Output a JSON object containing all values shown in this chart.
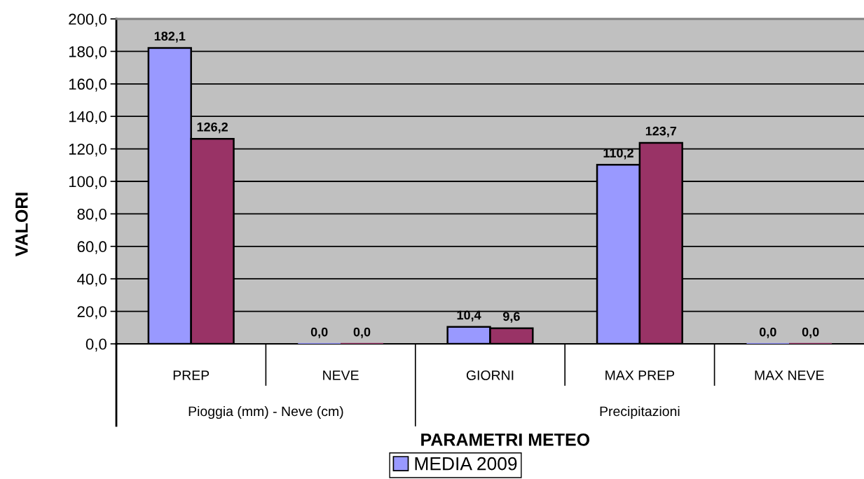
{
  "chart_data": {
    "type": "bar",
    "xlabel": "PARAMETRI METEO",
    "ylabel": "VALORI",
    "categories": [
      "PREP",
      "NEVE",
      "GIORNI",
      "MAX PREP",
      "MAX NEVE"
    ],
    "series": [
      {
        "name": "MEDIA 2009",
        "color": "#9999ff",
        "values": [
          182.1,
          0.0,
          10.4,
          110.2,
          0.0
        ],
        "value_labels": [
          "182,1",
          "0,0",
          "10,4",
          "110,2",
          "0,0"
        ]
      },
      {
        "color": "#993366",
        "values": [
          126.2,
          0.0,
          9.6,
          123.7,
          0.0
        ],
        "value_labels": [
          "126,2",
          "0,0",
          "9,6",
          "123,7",
          "0,0"
        ]
      }
    ],
    "ylim": [
      0,
      200
    ],
    "yticks": [
      {
        "value": 0,
        "label": "0,0"
      },
      {
        "value": 20,
        "label": "20,0"
      },
      {
        "value": 40,
        "label": "40,0"
      },
      {
        "value": 60,
        "label": "60,0"
      },
      {
        "value": 80,
        "label": "80,0"
      },
      {
        "value": 100,
        "label": "100,0"
      },
      {
        "value": 120,
        "label": "120,0"
      },
      {
        "value": 140,
        "label": "140,0"
      },
      {
        "value": 160,
        "label": "160,0"
      },
      {
        "value": 180,
        "label": "180,0"
      },
      {
        "value": 200,
        "label": "200,0"
      }
    ],
    "grid": "y",
    "legend": "bottom",
    "annotations": [
      "Pioggia (mm) - Neve (cm)",
      "Precipitazioni"
    ]
  }
}
